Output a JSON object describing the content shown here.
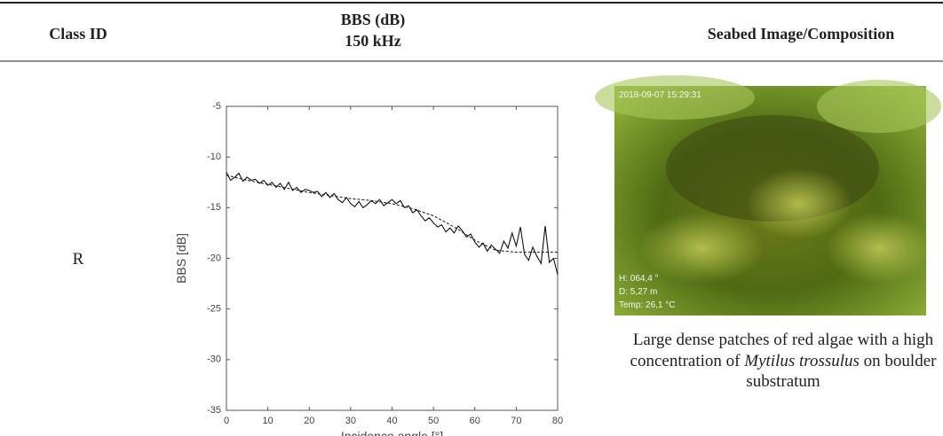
{
  "table": {
    "headers": {
      "class_id": "Class ID",
      "bbs": [
        "BBS (dB)",
        "150 kHz"
      ],
      "image": "Seabed Image/Composition"
    },
    "rows": [
      {
        "class_id": "R",
        "chart": {
          "type": "line",
          "xlabel": "Incidence angle [°]",
          "ylabel": "BBS [dB]",
          "xlim": [
            0,
            80
          ],
          "ylim": [
            -35,
            -5
          ],
          "xticks": [
            0,
            10,
            20,
            30,
            40,
            50,
            60,
            70,
            80
          ],
          "yticks": [
            -35,
            -30,
            -25,
            -20,
            -15,
            -10,
            -5
          ],
          "series": [
            {
              "color": "#111111",
              "dashed": false,
              "x": [
                0,
                1,
                2,
                3,
                4,
                5,
                6,
                7,
                8,
                9,
                10,
                11,
                12,
                13,
                14,
                15,
                16,
                17,
                18,
                19,
                20,
                21,
                22,
                23,
                24,
                25,
                26,
                27,
                28,
                29,
                30,
                31,
                32,
                33,
                34,
                35,
                36,
                37,
                38,
                39,
                40,
                41,
                42,
                43,
                44,
                45,
                46,
                47,
                48,
                49,
                50,
                51,
                52,
                53,
                54,
                55,
                56,
                57,
                58,
                59,
                60,
                61,
                62,
                63,
                64,
                65,
                66,
                67,
                68,
                69,
                70,
                71,
                72,
                73,
                74,
                75,
                76,
                77,
                78,
                79,
                80
              ],
              "values": [
                -11.5,
                -12.3,
                -12,
                -11.6,
                -12.4,
                -12,
                -12.3,
                -12.2,
                -12.6,
                -12.3,
                -12.8,
                -12.5,
                -13,
                -12.6,
                -13.2,
                -12.5,
                -13.3,
                -13,
                -13.5,
                -13.2,
                -13.3,
                -13.5,
                -13.4,
                -13.9,
                -13.5,
                -14,
                -13.6,
                -14.2,
                -14.5,
                -14,
                -14.6,
                -14.9,
                -14.4,
                -15,
                -14.7,
                -14.3,
                -14.6,
                -14.2,
                -14.8,
                -14.5,
                -14.2,
                -14.6,
                -14.3,
                -15,
                -14.8,
                -15.5,
                -15.2,
                -15.8,
                -16.3,
                -16,
                -16.5,
                -16.9,
                -16.7,
                -17.4,
                -17,
                -17.5,
                -16.8,
                -17.3,
                -17.9,
                -17.6,
                -18.4,
                -18.9,
                -18.5,
                -19.3,
                -18.7,
                -19.1,
                -19.5,
                -18.3,
                -19,
                -17.5,
                -18.8,
                -16.9,
                -19.6,
                -20.2,
                -18.9,
                -19.8,
                -20.5,
                -16.8,
                -20.4,
                -20,
                -21.6
              ]
            },
            {
              "color": "#111111",
              "dashed": true,
              "x": [
                0,
                5,
                10,
                15,
                20,
                25,
                30,
                35,
                40,
                45,
                50,
                55,
                60,
                65,
                70,
                75,
                80
              ],
              "values": [
                -11.8,
                -12.3,
                -12.7,
                -13.1,
                -13.5,
                -13.8,
                -14.1,
                -14.3,
                -14.6,
                -15.1,
                -15.8,
                -16.9,
                -18.2,
                -19.2,
                -19.4,
                -19.4,
                -19.4
              ]
            }
          ]
        },
        "image": {
          "timestamp": "2018-09-07 15:29:31",
          "overlay": [
            "H: 064,4 °",
            "D: 5,27 m",
            "Temp: 26,1 °C"
          ]
        },
        "caption": [
          "Large dense patches of red algae with a high concentration of",
          "Mytilus trossulus",
          "on boulder substratum"
        ]
      }
    ]
  }
}
